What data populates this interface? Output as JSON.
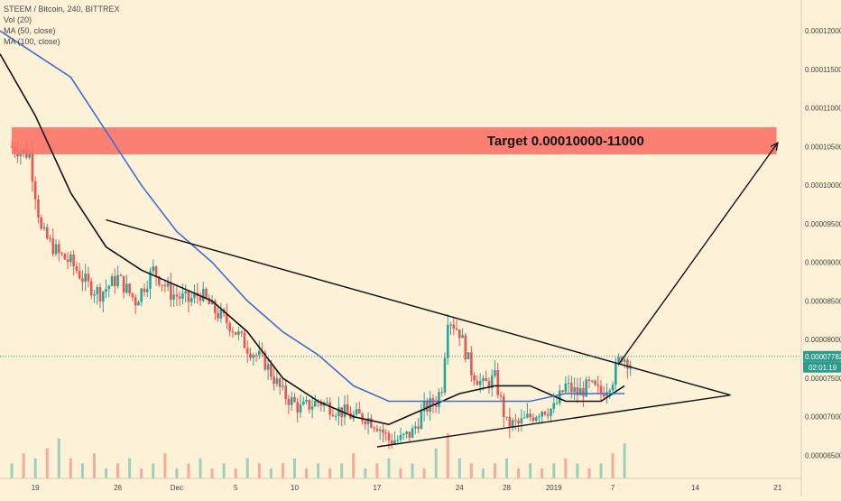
{
  "colors": {
    "background": "#fdf2d8",
    "up": "#26a69a",
    "down": "#ef5350",
    "ma50": "#111111",
    "ma100": "#3b6fd1",
    "target_zone": "#fb6f64",
    "last_price_line": "#2e9b8f",
    "trendline": "#111111",
    "axis": "#d8cdb4"
  },
  "legend": {
    "symbol": "STEEM / Bitcoin, 240, BITTREX",
    "vol": "Vol (20)",
    "ma50": "MA (50, close)",
    "ma100": "MA (100, close)"
  },
  "chart_data": {
    "type": "candlestick",
    "symbol": "STEEM / Bitcoin",
    "interval": "240",
    "exchange": "BITTREX",
    "y_axis": {
      "ticks": [
        "0.00012000",
        "0.00011500",
        "0.00011000",
        "0.00010500",
        "0.00010000",
        "0.00009500",
        "0.00009000",
        "0.00008500",
        "0.00008000",
        "0.00007500",
        "0.00007000",
        "0.00006500"
      ],
      "values": [
        0.00012,
        0.000115,
        0.00011,
        0.000105,
        0.0001,
        9.5e-05,
        9e-05,
        8.5e-05,
        8e-05,
        7.5e-05,
        7e-05,
        6.5e-05
      ],
      "range": [
        6.2e-05,
        0.000124
      ]
    },
    "x_axis": {
      "ticks": [
        "19",
        "26",
        "Dec",
        "5",
        "10",
        "17",
        "24",
        "28",
        "2019",
        "7",
        "14",
        "21"
      ],
      "positions": [
        -7,
        0,
        5,
        10,
        15,
        22,
        29,
        33,
        37,
        42,
        49,
        56
      ]
    },
    "price_path_x": [
      -9,
      -7.5,
      -6.5,
      -5,
      -4,
      -2.5,
      -1.5,
      0,
      1.5,
      3,
      4.5,
      6,
      7,
      8,
      9.5,
      11,
      12.5,
      14,
      15.5,
      17,
      18.5,
      20,
      21,
      22,
      23,
      24,
      25,
      26,
      27,
      27.5,
      28,
      29,
      30,
      31,
      32,
      33,
      34,
      35,
      36,
      37,
      38,
      39,
      40,
      41,
      42,
      42.7,
      43.5
    ],
    "price_path_close": [
      0.000105,
      0.000104,
      9.4e-05,
      9.1e-05,
      9e-05,
      8.7e-05,
      8.6e-05,
      8.8e-05,
      8.5e-05,
      8.9e-05,
      8.6e-05,
      8.5e-05,
      8.6e-05,
      8.4e-05,
      8.2e-05,
      7.9e-05,
      7.7e-05,
      7.3e-05,
      7.1e-05,
      7.2e-05,
      7.1e-05,
      7e-05,
      7e-05,
      6.9e-05,
      6.7e-05,
      6.7e-05,
      6.8e-05,
      7.1e-05,
      7.2e-05,
      7.4e-05,
      8.3e-05,
      8.1e-05,
      7.6e-05,
      7.4e-05,
      7.5e-05,
      6.9e-05,
      6.9e-05,
      7e-05,
      7.1e-05,
      7.1e-05,
      7.4e-05,
      7.3e-05,
      7.4e-05,
      7.3e-05,
      7.5e-05,
      7.8e-05,
      7.7e-05
    ],
    "moving_averages": [
      {
        "name": "MA (50, close)",
        "x": [
          -10,
          -7,
          -4,
          -1,
          2,
          5,
          8,
          11,
          14,
          17,
          20,
          23,
          26,
          29,
          32,
          35,
          38,
          41,
          43
        ],
        "y": [
          0.000117,
          0.000109,
          9.9e-05,
          9.2e-05,
          8.9e-05,
          8.7e-05,
          8.5e-05,
          8.1e-05,
          7.5e-05,
          7.2e-05,
          7e-05,
          6.9e-05,
          7.1e-05,
          7.3e-05,
          7.4e-05,
          7.4e-05,
          7.2e-05,
          7.2e-05,
          7.4e-05
        ]
      },
      {
        "name": "MA (100, close)",
        "x": [
          -10,
          -7,
          -4,
          -1,
          2,
          5,
          8,
          11,
          14,
          17,
          20,
          23,
          26,
          29,
          32,
          35,
          38,
          41,
          43
        ],
        "y": [
          0.00012,
          0.000117,
          0.000114,
          0.000107,
          0.0001,
          9.4e-05,
          9e-05,
          8.5e-05,
          8.1e-05,
          7.8e-05,
          7.4e-05,
          7.2e-05,
          7.2e-05,
          7.2e-05,
          7.2e-05,
          7.2e-05,
          7.3e-05,
          7.3e-05,
          7.3e-05
        ]
      }
    ],
    "volume": {
      "label": "Vol (20)",
      "x": [
        -9,
        -8,
        -7,
        -6,
        -5,
        -4,
        -3,
        -2,
        -1,
        0,
        1,
        2,
        3,
        4,
        5,
        6,
        7,
        8,
        9,
        10,
        11,
        12,
        13,
        14,
        15,
        16,
        17,
        18,
        19,
        20,
        21,
        22,
        23,
        24,
        25,
        26,
        27,
        28,
        29,
        30,
        31,
        32,
        33,
        34,
        35,
        36,
        37,
        38,
        39,
        40,
        41,
        42,
        43
      ],
      "values": [
        3,
        5,
        4,
        6,
        8,
        4,
        3,
        5,
        2,
        3,
        4,
        2,
        3,
        5,
        2,
        3,
        4,
        2,
        3,
        2,
        4,
        3,
        2,
        3,
        4,
        2,
        3,
        2,
        3,
        5,
        2,
        3,
        4,
        2,
        3,
        2,
        6,
        9,
        4,
        3,
        2,
        3,
        4,
        2,
        3,
        2,
        3,
        4,
        3,
        2,
        3,
        5,
        7
      ]
    },
    "annotations": {
      "target_label": "Target 0.00010000-11000",
      "target_zone": [
        0.000104,
        0.0001075
      ],
      "descending_trendline": {
        "x": [
          -1,
          52
        ],
        "y": [
          9.55e-05,
          7.28e-05
        ]
      },
      "ascending_trendline": {
        "x": [
          22,
          52
        ],
        "y": [
          6.61e-05,
          7.28e-05
        ]
      },
      "projection_arrow": {
        "x": [
          42.5,
          56
        ],
        "y": [
          7.68e-05,
          0.0001055
        ]
      },
      "last_price": "0.00007782",
      "last_price_value": 7.782e-05,
      "countdown": "02:01:19"
    }
  }
}
